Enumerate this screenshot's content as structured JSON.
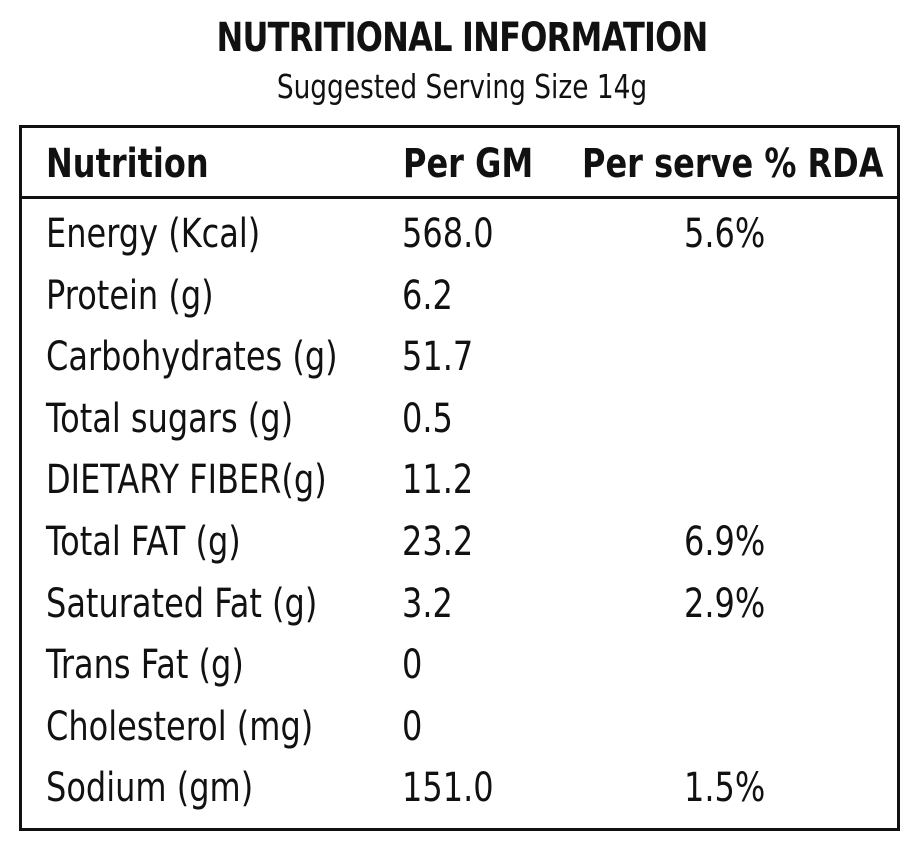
{
  "title": "NUTRITIONAL INFORMATION",
  "subtitle": "Suggested Serving Size 14g",
  "table": {
    "headers": [
      "Nutrition",
      "Per GM",
      "Per serve % RDA"
    ],
    "rows": [
      [
        "Energy (Kcal)",
        "568.0",
        "5.6%"
      ],
      [
        "Protein (g)",
        "6.2",
        ""
      ],
      [
        "Carbohydrates (g)",
        "51.7",
        ""
      ],
      [
        "Total sugars (g)",
        "0.5",
        ""
      ],
      [
        "DIETARY FIBER(g)",
        "11.2",
        ""
      ],
      [
        "Total FAT (g)",
        "23.2",
        "6.9%"
      ],
      [
        "Saturated Fat (g)",
        "3.2",
        "2.9%"
      ],
      [
        "Trans Fat (g)",
        "0",
        ""
      ],
      [
        "Cholesterol (mg)",
        "0",
        ""
      ],
      [
        "Sodium (gm)",
        "151.0",
        "1.5%"
      ]
    ]
  }
}
